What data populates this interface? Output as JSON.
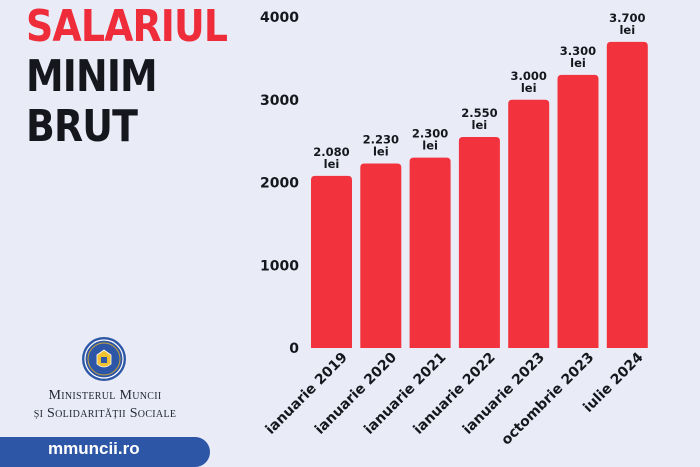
{
  "header": {
    "title_line1": "SALARIUL",
    "title_line2": "MINIM",
    "title_line3": "BRUT"
  },
  "branding": {
    "ministry_line1": "Ministerul Muncii",
    "ministry_line2": "și Solidarității Sociale",
    "website": "mmuncii.ro"
  },
  "colors": {
    "accent_red": "#ee2c3a",
    "bar_red": "#f2333d",
    "background": "#e9ebf7",
    "footer_blue": "#2e56a6",
    "text_dark": "#16171d"
  },
  "chart_data": {
    "type": "bar",
    "categories": [
      "ianuarie 2019",
      "ianuarie 2020",
      "ianuarie 2021",
      "ianuarie 2022",
      "ianuarie 2023",
      "octombrie 2023",
      "iulie 2024"
    ],
    "values": [
      2080,
      2230,
      2300,
      2550,
      3000,
      3300,
      3700
    ],
    "value_labels": [
      "2.080",
      "2.230",
      "2.300",
      "2.550",
      "3.000",
      "3.300",
      "3.700"
    ],
    "value_unit": "lei",
    "ylim": [
      0,
      4000
    ],
    "yticks": [
      0,
      1000,
      2000,
      3000,
      4000
    ],
    "grid": false,
    "title": "",
    "xlabel": "",
    "ylabel": ""
  }
}
